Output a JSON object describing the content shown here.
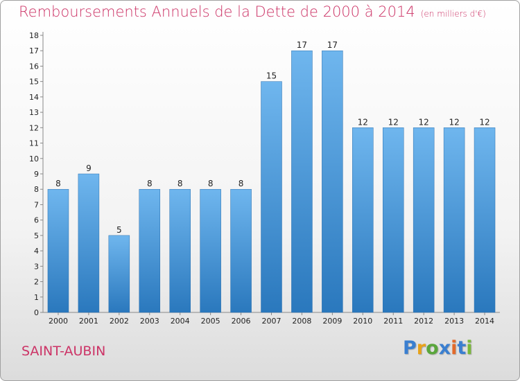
{
  "title": "Remboursements Annuels de la Dette de 2000 à 2014",
  "subtitle": "(en milliers d'€)",
  "commune": "SAINT-AUBIN",
  "logo": [
    "P",
    "r",
    "o",
    "x",
    "i",
    "t",
    "i"
  ],
  "colors": {
    "bar_light": "#6fb6ee",
    "bar_dark": "#2a78bd",
    "title": "#cc3366"
  },
  "chart_data": {
    "type": "bar",
    "title": "Remboursements Annuels de la Dette de 2000 à 2014",
    "subtitle": "(en milliers d'€)",
    "categories": [
      "2000",
      "2001",
      "2002",
      "2003",
      "2004",
      "2005",
      "2006",
      "2007",
      "2008",
      "2009",
      "2010",
      "2011",
      "2012",
      "2013",
      "2014"
    ],
    "values": [
      8,
      9,
      5,
      8,
      8,
      8,
      8,
      15,
      17,
      17,
      12,
      12,
      12,
      12,
      12
    ],
    "ylim": [
      0,
      18
    ],
    "yticks": [
      "0",
      "1",
      "2",
      "3",
      "4",
      "5",
      "6",
      "7",
      "8",
      "9",
      "10",
      "11",
      "12",
      "13",
      "14",
      "15",
      "16",
      "17",
      "18"
    ],
    "grid": false,
    "legend": "none"
  }
}
